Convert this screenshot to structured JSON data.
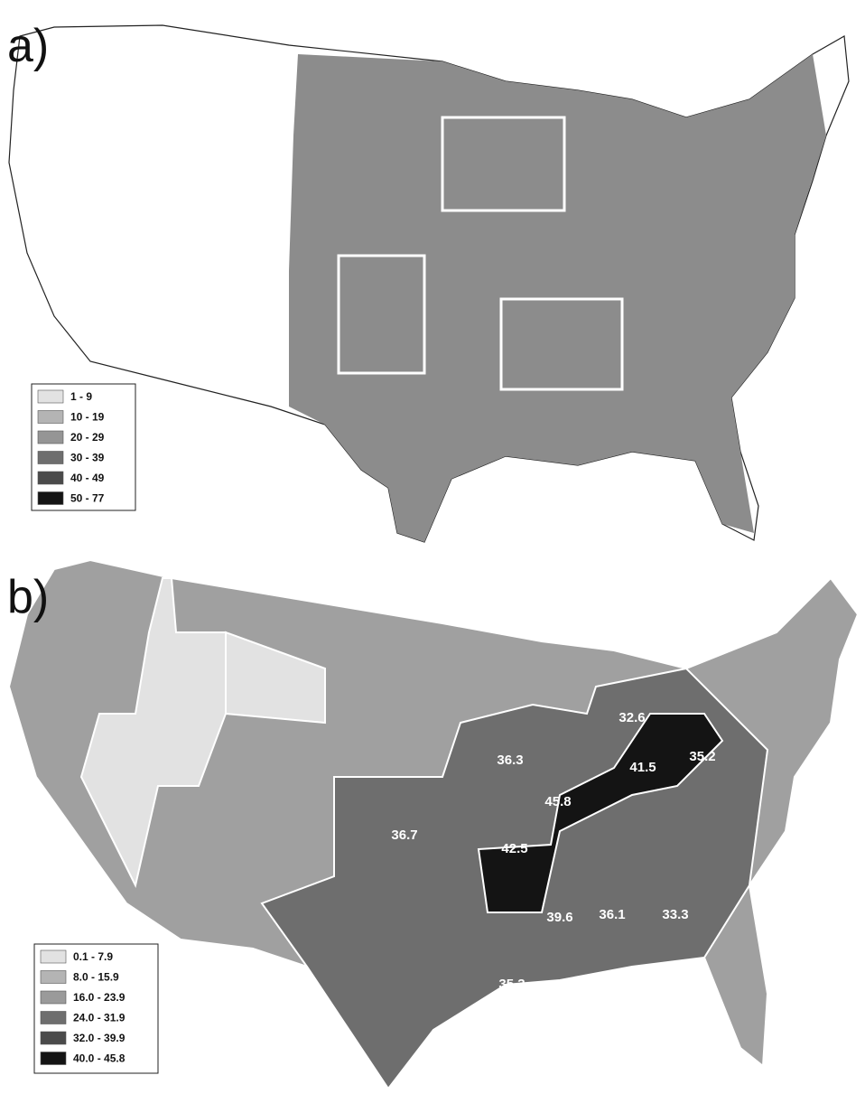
{
  "panels": [
    {
      "label": "a)",
      "legend": [
        {
          "label": "1 - 9",
          "color": "#e2e2e2"
        },
        {
          "label": "10 - 19",
          "color": "#b4b4b4"
        },
        {
          "label": "20 - 29",
          "color": "#959595"
        },
        {
          "label": "30 - 39",
          "color": "#6e6e6e"
        },
        {
          "label": "40 - 49",
          "color": "#4a4a4a"
        },
        {
          "label": "50 - 77",
          "color": "#141414"
        }
      ]
    },
    {
      "label": "b)",
      "legend": [
        {
          "label": "0.1 - 7.9",
          "color": "#e2e2e2"
        },
        {
          "label": "8.0 - 15.9",
          "color": "#b4b4b4"
        },
        {
          "label": "16.0 - 23.9",
          "color": "#9a9a9a"
        },
        {
          "label": "24.0 - 31.9",
          "color": "#6e6e6e"
        },
        {
          "label": "32.0 - 39.9",
          "color": "#4a4a4a"
        },
        {
          "label": "40.0 - 45.8",
          "color": "#141414"
        }
      ],
      "state_labels": [
        "32.6",
        "41.5",
        "35.2",
        "36.3",
        "36.7",
        "42.5",
        "45.8",
        "39.6",
        "36.1",
        "33.3",
        "35.3"
      ]
    }
  ]
}
